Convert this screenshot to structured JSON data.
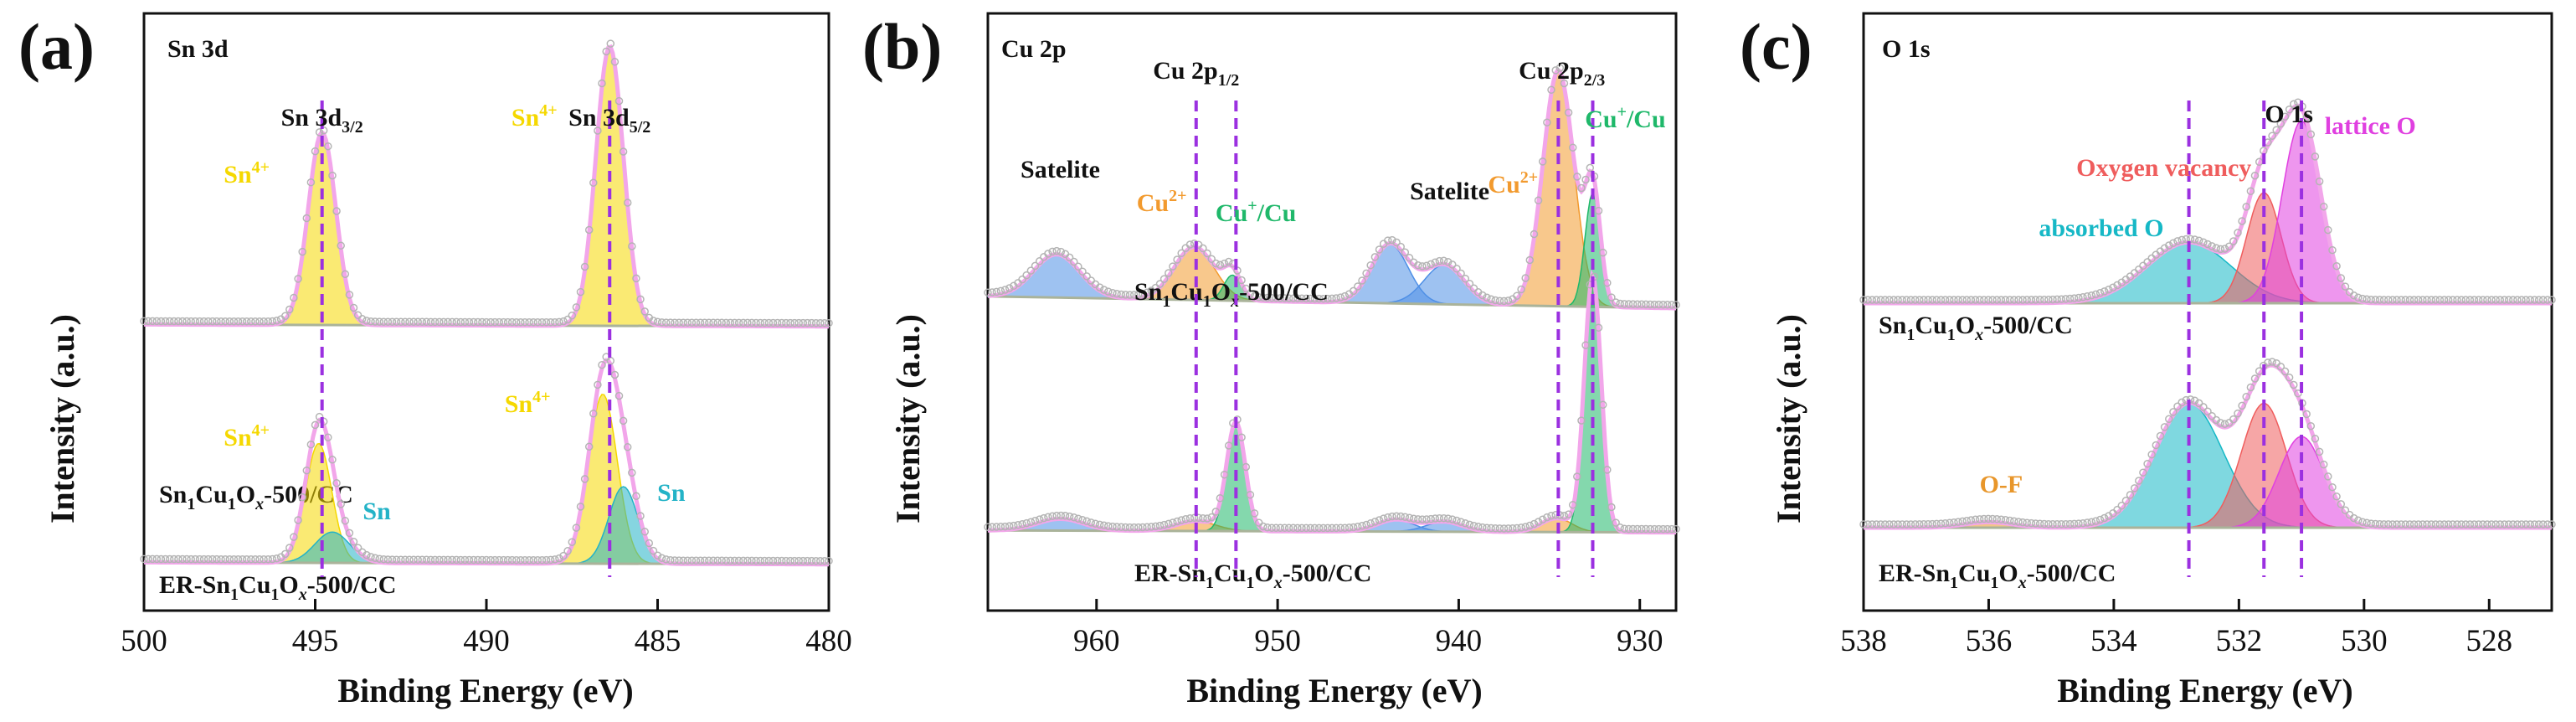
{
  "colors": {
    "envelope": "#f2a6ea",
    "dots": "#b4b4b4",
    "baseline": "#aab39a",
    "guide": "#9b30e0",
    "label_dark": "#111111",
    "sn4": "#f5d800",
    "sn": "#23b3c7",
    "cu2": "#f29a2e",
    "cu1": "#1fb86a",
    "satelite": "#4e8fe6",
    "oxy_vac": "#ef5d5d",
    "lattice": "#e040e0",
    "absorbed": "#16b8c6",
    "of": "#e8962a"
  },
  "chart_data": [
    {
      "panel": "(a)",
      "type": "line",
      "title": "Sn 3d",
      "xlabel": "Binding Energy (eV)",
      "ylabel": "Intensity (a.u.)",
      "xlim": [
        500,
        480
      ],
      "x_reversed": true,
      "xticks": [
        "500",
        "495",
        "490",
        "485",
        "480"
      ],
      "xtick_values": [
        500,
        495,
        490,
        485,
        480
      ],
      "guides": [
        494.8,
        486.4
      ],
      "peak_labels": [
        {
          "main": "Sn 3d",
          "sub": "3/2",
          "x": 494.8
        },
        {
          "main": "Sn 3d",
          "sub": "5/2",
          "x": 486.4
        }
      ],
      "series": [
        {
          "name": "Sn1Cu1Ox-500/CC",
          "label_main": "Sn",
          "label_sub1": "1",
          "label_mid": "Cu",
          "label_sub2": "1",
          "label_mid2": "O",
          "label_sub3": "x",
          "label_tail": "-500/CC",
          "baseline": [
            0.02,
            0.01
          ],
          "components": [
            {
              "name": "Sn4+",
              "species": "Sn",
              "sup": "4+",
              "center": 494.8,
              "height": 1.0,
              "fwhm": 0.95,
              "color": "sn4"
            },
            {
              "name": "Sn4+",
              "species": "Sn",
              "sup": "4+",
              "center": 486.4,
              "height": 1.45,
              "fwhm": 0.95,
              "color": "sn4"
            }
          ]
        },
        {
          "name": "ER-Sn1Cu1Ox-500/CC",
          "label_main": "ER-Sn",
          "label_sub1": "1",
          "label_mid": "Cu",
          "label_sub2": "1",
          "label_mid2": "O",
          "label_sub3": "x",
          "label_tail": "-500/CC",
          "baseline": [
            0.02,
            0.01
          ],
          "components": [
            {
              "name": "Sn4+",
              "species": "Sn",
              "sup": "4+",
              "center": 494.9,
              "height": 0.62,
              "fwhm": 0.9,
              "color": "sn4"
            },
            {
              "name": "Sn",
              "species": "Sn",
              "sup": "",
              "center": 494.5,
              "height": 0.16,
              "fwhm": 1.2,
              "color": "sn"
            },
            {
              "name": "Sn4+",
              "species": "Sn",
              "sup": "4+",
              "center": 486.6,
              "height": 0.88,
              "fwhm": 1.0,
              "color": "sn4"
            },
            {
              "name": "Sn",
              "species": "Sn",
              "sup": "",
              "center": 486.0,
              "height": 0.4,
              "fwhm": 1.0,
              "color": "sn"
            }
          ]
        }
      ]
    },
    {
      "panel": "(b)",
      "type": "line",
      "title": "Cu 2p",
      "xlabel": "Binding Energy (eV)",
      "ylabel": "Intensity (a.u.)",
      "xlim": [
        966,
        928
      ],
      "x_reversed": true,
      "xticks": [
        "960",
        "950",
        "940",
        "930"
      ],
      "xtick_values": [
        960,
        950,
        940,
        930
      ],
      "guides": [
        954.5,
        952.3,
        934.5,
        932.6
      ],
      "peak_labels": [
        {
          "main": "Cu 2p",
          "sub": "1/2",
          "x": 954.5
        },
        {
          "main": "Cu 2p",
          "sub": "2/3",
          "x": 934.3
        }
      ],
      "series": [
        {
          "name": "Sn1Cu1Ox-500/CC",
          "label_main": "Sn",
          "label_sub1": "1",
          "label_mid": "Cu",
          "label_sub2": "1",
          "label_mid2": "O",
          "label_sub3": "x",
          "label_tail": "-500/CC",
          "baseline": [
            0.06,
            0.0
          ],
          "components": [
            {
              "name": "Satelite",
              "center": 962.2,
              "height": 0.22,
              "fwhm": 3.0,
              "color": "satelite"
            },
            {
              "name": "Cu2+",
              "species": "Cu",
              "sup": "2+",
              "center": 954.6,
              "height": 0.27,
              "fwhm": 2.6,
              "color": "cu2"
            },
            {
              "name": "Cu+/Cu",
              "species": "Cu",
              "sup": "+",
              "center": 952.5,
              "height": 0.13,
              "fwhm": 1.1,
              "color": "cu1"
            },
            {
              "name": "Satelite",
              "center": 943.8,
              "height": 0.3,
              "fwhm": 2.4,
              "color": "satelite"
            },
            {
              "name": "Satelite",
              "center": 940.8,
              "height": 0.2,
              "fwhm": 2.6,
              "color": "satelite"
            },
            {
              "name": "Cu2+",
              "species": "Cu",
              "sup": "2+",
              "center": 934.5,
              "height": 1.2,
              "fwhm": 2.0,
              "color": "cu2"
            },
            {
              "name": "Cu+/Cu",
              "species": "Cu",
              "sup": "+",
              "center": 932.6,
              "height": 0.58,
              "fwhm": 1.0,
              "color": "cu1"
            }
          ],
          "annotations": [
            {
              "text": "Satelite",
              "x": 962.0
            },
            {
              "text": "Cu",
              "sup": "2+",
              "x": 956.4,
              "color": "cu2"
            },
            {
              "text": "Cu",
              "sup": "+",
              "tail": "/Cu",
              "x": 951.2,
              "color": "cu1"
            },
            {
              "text": "Satelite",
              "x": 940.5
            },
            {
              "text": "Cu",
              "sup": "2+",
              "x": 937.0,
              "color": "cu2"
            },
            {
              "text": "Cu",
              "sup": "+",
              "tail": "/Cu",
              "x": 930.8,
              "color": "cu1"
            }
          ]
        },
        {
          "name": "ER-Sn1Cu1Ox-500/CC",
          "label_main": "ER-Sn",
          "label_sub1": "1",
          "label_mid": "Cu",
          "label_sub2": "1",
          "label_mid2": "O",
          "label_sub3": "x",
          "label_tail": "-500/CC",
          "baseline": [
            0.02,
            0.01
          ],
          "components": [
            {
              "name": "Satelite",
              "center": 962.0,
              "height": 0.06,
              "fwhm": 3.0,
              "color": "satelite"
            },
            {
              "name": "Cu2+",
              "species": "Cu",
              "sup": "2+",
              "center": 954.5,
              "height": 0.05,
              "fwhm": 2.6,
              "color": "cu2"
            },
            {
              "name": "Cu+/Cu",
              "species": "Cu",
              "sup": "+",
              "center": 952.3,
              "height": 0.55,
              "fwhm": 1.2,
              "color": "cu1"
            },
            {
              "name": "Satelite",
              "center": 943.5,
              "height": 0.06,
              "fwhm": 2.4,
              "color": "satelite"
            },
            {
              "name": "Satelite",
              "center": 940.8,
              "height": 0.05,
              "fwhm": 2.4,
              "color": "satelite"
            },
            {
              "name": "Cu2+",
              "species": "Cu",
              "sup": "2+",
              "center": 934.6,
              "height": 0.07,
              "fwhm": 2.0,
              "color": "cu2"
            },
            {
              "name": "Cu+/Cu",
              "species": "Cu",
              "sup": "+",
              "center": 932.6,
              "height": 1.3,
              "fwhm": 1.1,
              "color": "cu1"
            }
          ]
        }
      ]
    },
    {
      "panel": "(c)",
      "type": "line",
      "title": "O 1s",
      "xlabel": "Binding Energy (eV)",
      "ylabel": "Intensity (a.u.)",
      "xlim": [
        538,
        527
      ],
      "x_reversed": true,
      "xticks": [
        "538",
        "536",
        "534",
        "532",
        "530",
        "528"
      ],
      "xtick_values": [
        538,
        536,
        534,
        532,
        530,
        528
      ],
      "guides": [
        532.8,
        531.6,
        531.0
      ],
      "peak_labels": [
        {
          "main": "O 1s",
          "sub": "",
          "x": 531.2
        }
      ],
      "series": [
        {
          "name": "Sn1Cu1Ox-500/CC",
          "label_main": "Sn",
          "label_sub1": "1",
          "label_mid": "Cu",
          "label_sub2": "1",
          "label_mid2": "O",
          "label_sub3": "x",
          "label_tail": "-500/CC",
          "baseline": [
            0.0,
            0.0
          ],
          "components": [
            {
              "name": "absorbed O",
              "center": 532.8,
              "height": 0.22,
              "fwhm": 1.6,
              "color": "absorbed"
            },
            {
              "name": "Oxygen vacancy",
              "center": 531.6,
              "height": 0.4,
              "fwhm": 0.65,
              "color": "oxy_vac"
            },
            {
              "name": "lattice O",
              "center": 531.0,
              "height": 0.66,
              "fwhm": 0.72,
              "color": "lattice"
            }
          ],
          "annotations": [
            {
              "text": "absorbed O",
              "x": 534.2,
              "color": "absorbed"
            },
            {
              "text": "Oxygen vacancy",
              "x": 533.2,
              "color": "oxy_vac"
            },
            {
              "text": "lattice O",
              "x": 529.9,
              "color": "lattice"
            }
          ]
        },
        {
          "name": "ER-Sn1Cu1Ox-500/CC",
          "label_main": "ER-Sn",
          "label_sub1": "1",
          "label_mid": "Cu",
          "label_sub2": "1",
          "label_mid2": "O",
          "label_sub3": "x",
          "label_tail": "-500/CC",
          "baseline": [
            0.0,
            0.0
          ],
          "components": [
            {
              "name": "O-F",
              "center": 536.0,
              "height": 0.02,
              "fwhm": 0.9,
              "color": "of"
            },
            {
              "name": "absorbed O",
              "center": 532.8,
              "height": 0.45,
              "fwhm": 1.3,
              "color": "absorbed"
            },
            {
              "name": "Oxygen vacancy",
              "center": 531.6,
              "height": 0.45,
              "fwhm": 0.85,
              "color": "oxy_vac"
            },
            {
              "name": "lattice O",
              "center": 531.0,
              "height": 0.33,
              "fwhm": 0.85,
              "color": "lattice"
            }
          ],
          "annotations": [
            {
              "text": "O-F",
              "x": 535.8,
              "color": "of"
            }
          ]
        }
      ]
    }
  ]
}
